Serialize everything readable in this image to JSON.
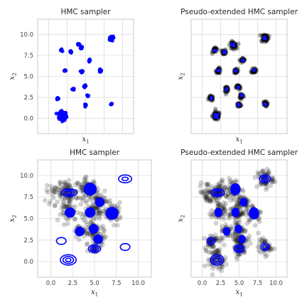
{
  "chart_data": [
    {
      "type": "scatter",
      "title": "HMC sampler",
      "xlabel": "x",
      "xlabel_sub": "1",
      "ylabel": "x",
      "ylabel_sub": "2",
      "xlim": [
        -1.5,
        11.5
      ],
      "ylim": [
        -1.8,
        11.8
      ],
      "yticks": [
        "0.0",
        "2.5",
        "5.0",
        "7.5",
        "10.0"
      ],
      "xticks": [],
      "grid": true,
      "samples_color": "#0000ff",
      "clusters": [
        {
          "x": 1.9,
          "y": 0.3,
          "n": 180,
          "sd": 0.25
        },
        {
          "x": 1.2,
          "y": 2.4,
          "n": 10,
          "sd": 0.06
        },
        {
          "x": 1.7,
          "y": 8.1,
          "n": 8,
          "sd": 0.06
        },
        {
          "x": 3.0,
          "y": 7.9,
          "n": 8,
          "sd": 0.06
        },
        {
          "x": 2.2,
          "y": 5.7,
          "n": 8,
          "sd": 0.06
        },
        {
          "x": 3.3,
          "y": 3.5,
          "n": 8,
          "sd": 0.06
        },
        {
          "x": 4.0,
          "y": 8.8,
          "n": 10,
          "sd": 0.07
        },
        {
          "x": 4.4,
          "y": 8.4,
          "n": 10,
          "sd": 0.07
        },
        {
          "x": 4.5,
          "y": 5.6,
          "n": 10,
          "sd": 0.07
        },
        {
          "x": 4.9,
          "y": 3.8,
          "n": 10,
          "sd": 0.07
        },
        {
          "x": 5.0,
          "y": 1.6,
          "n": 10,
          "sd": 0.06
        },
        {
          "x": 5.3,
          "y": 2.7,
          "n": 8,
          "sd": 0.06
        },
        {
          "x": 5.5,
          "y": 6.9,
          "n": 8,
          "sd": 0.06
        },
        {
          "x": 7.0,
          "y": 5.7,
          "n": 14,
          "sd": 0.08
        },
        {
          "x": 8.4,
          "y": 9.5,
          "n": 18,
          "sd": 0.1
        },
        {
          "x": 8.7,
          "y": 9.6,
          "n": 14,
          "sd": 0.08
        },
        {
          "x": 8.5,
          "y": 1.7,
          "n": 8,
          "sd": 0.06
        }
      ]
    },
    {
      "type": "scatter",
      "title": "Pseudo-extended HMC sampler",
      "xlabel": "x",
      "xlabel_sub": "1",
      "ylabel": "x",
      "ylabel_sub": "2",
      "xlim": [
        -1.5,
        11.5
      ],
      "ylim": [
        -1.8,
        11.8
      ],
      "yticks": [],
      "xticks": [],
      "grid": true,
      "samples_color": "#000000",
      "clusters": [
        {
          "x": 1.9,
          "y": 0.3,
          "n": 60,
          "sd": 0.25
        },
        {
          "x": 1.2,
          "y": 2.4,
          "n": 25,
          "sd": 0.15
        },
        {
          "x": 1.7,
          "y": 8.1,
          "n": 25,
          "sd": 0.15
        },
        {
          "x": 3.0,
          "y": 7.9,
          "n": 25,
          "sd": 0.15
        },
        {
          "x": 2.2,
          "y": 5.7,
          "n": 25,
          "sd": 0.15
        },
        {
          "x": 3.3,
          "y": 3.5,
          "n": 25,
          "sd": 0.15
        },
        {
          "x": 4.2,
          "y": 8.7,
          "n": 35,
          "sd": 0.22
        },
        {
          "x": 4.5,
          "y": 5.6,
          "n": 25,
          "sd": 0.15
        },
        {
          "x": 4.9,
          "y": 3.7,
          "n": 25,
          "sd": 0.15
        },
        {
          "x": 5.0,
          "y": 1.6,
          "n": 25,
          "sd": 0.15
        },
        {
          "x": 5.3,
          "y": 2.7,
          "n": 25,
          "sd": 0.15
        },
        {
          "x": 5.5,
          "y": 6.9,
          "n": 25,
          "sd": 0.15
        },
        {
          "x": 7.0,
          "y": 5.7,
          "n": 25,
          "sd": 0.15
        },
        {
          "x": 8.5,
          "y": 9.6,
          "n": 40,
          "sd": 0.25
        },
        {
          "x": 8.5,
          "y": 1.7,
          "n": 25,
          "sd": 0.15
        }
      ]
    },
    {
      "type": "scatter",
      "title": "HMC sampler",
      "xlabel": "x",
      "xlabel_sub": "1",
      "ylabel": "x",
      "ylabel_sub": "2",
      "xlim": [
        -1.5,
        11.5
      ],
      "ylim": [
        -1.8,
        11.8
      ],
      "yticks": [
        "0.0",
        "2.5",
        "5.0",
        "7.5",
        "10.0"
      ],
      "xticks": [
        "0.0",
        "2.5",
        "5.0",
        "7.5",
        "10.0"
      ],
      "grid": true,
      "samples_color": "#000000",
      "ellipse_color": "#0000ff",
      "clusters": [
        {
          "x": 0.9,
          "y": 8.0,
          "n": 45,
          "sd": 0.7
        },
        {
          "x": 2.0,
          "y": 8.0,
          "n": 60,
          "sd": 0.55
        },
        {
          "x": 2.2,
          "y": 5.7,
          "n": 50,
          "sd": 0.5
        },
        {
          "x": 4.2,
          "y": 8.4,
          "n": 70,
          "sd": 0.6
        },
        {
          "x": 4.6,
          "y": 5.7,
          "n": 55,
          "sd": 0.5
        },
        {
          "x": 5.6,
          "y": 6.9,
          "n": 40,
          "sd": 0.5
        },
        {
          "x": 7.0,
          "y": 5.6,
          "n": 55,
          "sd": 0.55
        },
        {
          "x": 3.4,
          "y": 3.5,
          "n": 35,
          "sd": 0.45
        },
        {
          "x": 5.0,
          "y": 3.7,
          "n": 40,
          "sd": 0.5
        },
        {
          "x": 5.3,
          "y": 2.5,
          "n": 35,
          "sd": 0.45
        },
        {
          "x": 5.0,
          "y": 1.6,
          "n": 20,
          "sd": 0.3
        }
      ],
      "blobs": [
        {
          "x": 2.2,
          "y": 5.7,
          "r": 0.6
        },
        {
          "x": 4.5,
          "y": 8.4,
          "r": 0.75
        },
        {
          "x": 4.5,
          "y": 5.7,
          "r": 0.6
        },
        {
          "x": 5.6,
          "y": 6.9,
          "r": 0.55
        },
        {
          "x": 7.0,
          "y": 5.6,
          "r": 0.75
        },
        {
          "x": 3.3,
          "y": 3.5,
          "r": 0.55
        },
        {
          "x": 4.9,
          "y": 3.8,
          "r": 0.55
        },
        {
          "x": 5.4,
          "y": 2.6,
          "r": 0.55
        }
      ],
      "ellipses": [
        {
          "x": 2.1,
          "y": 8.0,
          "rx": [
            0.9,
            0.6,
            0.3
          ],
          "ry": [
            0.45,
            0.3,
            0.15
          ]
        },
        {
          "x": 1.2,
          "y": 2.4,
          "rx": [
            0.55
          ],
          "ry": [
            0.4
          ]
        },
        {
          "x": 2.0,
          "y": 0.2,
          "rx": [
            0.9,
            0.6,
            0.3
          ],
          "ry": [
            0.6,
            0.4,
            0.2
          ]
        },
        {
          "x": 5.0,
          "y": 1.5,
          "rx": [
            0.7,
            0.45,
            0.2
          ],
          "ry": [
            0.45,
            0.3,
            0.13
          ]
        },
        {
          "x": 8.5,
          "y": 9.6,
          "rx": [
            0.75,
            0.35
          ],
          "ry": [
            0.45,
            0.2
          ]
        },
        {
          "x": 8.5,
          "y": 1.7,
          "rx": [
            0.55
          ],
          "ry": [
            0.4
          ]
        }
      ]
    },
    {
      "type": "scatter",
      "title": "Pseudo-extended HMC sampler",
      "xlabel": "x",
      "xlabel_sub": "1",
      "ylabel": "x",
      "ylabel_sub": "2",
      "xlim": [
        -1.5,
        11.5
      ],
      "ylim": [
        -1.8,
        11.8
      ],
      "yticks": [],
      "xticks": [
        "0.0",
        "2.5",
        "5.0",
        "7.5",
        "10.0"
      ],
      "grid": true,
      "samples_color": "#000000",
      "ellipse_color": "#0000ff",
      "clusters": [
        {
          "x": 0.9,
          "y": 8.0,
          "n": 45,
          "sd": 0.65
        },
        {
          "x": 2.0,
          "y": 8.0,
          "n": 60,
          "sd": 0.55
        },
        {
          "x": 2.2,
          "y": 5.7,
          "n": 45,
          "sd": 0.5
        },
        {
          "x": 4.2,
          "y": 8.4,
          "n": 60,
          "sd": 0.6
        },
        {
          "x": 4.6,
          "y": 5.7,
          "n": 50,
          "sd": 0.5
        },
        {
          "x": 5.6,
          "y": 6.9,
          "n": 40,
          "sd": 0.5
        },
        {
          "x": 7.0,
          "y": 5.6,
          "n": 50,
          "sd": 0.55
        },
        {
          "x": 3.4,
          "y": 3.5,
          "n": 35,
          "sd": 0.45
        },
        {
          "x": 5.0,
          "y": 3.7,
          "n": 40,
          "sd": 0.5
        },
        {
          "x": 5.3,
          "y": 2.5,
          "n": 35,
          "sd": 0.45
        },
        {
          "x": 5.0,
          "y": 1.5,
          "n": 45,
          "sd": 0.45
        },
        {
          "x": 1.2,
          "y": 2.4,
          "n": 45,
          "sd": 0.45
        },
        {
          "x": 2.0,
          "y": 0.3,
          "n": 70,
          "sd": 0.6
        },
        {
          "x": 8.5,
          "y": 9.6,
          "n": 60,
          "sd": 0.55
        },
        {
          "x": 8.5,
          "y": 1.7,
          "n": 45,
          "sd": 0.45
        }
      ],
      "blobs": [
        {
          "x": 2.2,
          "y": 5.7,
          "r": 0.55
        },
        {
          "x": 4.5,
          "y": 8.4,
          "r": 0.7
        },
        {
          "x": 4.5,
          "y": 5.7,
          "r": 0.55
        },
        {
          "x": 5.6,
          "y": 6.9,
          "r": 0.5
        },
        {
          "x": 7.0,
          "y": 5.6,
          "r": 0.7
        },
        {
          "x": 3.3,
          "y": 3.5,
          "r": 0.5
        },
        {
          "x": 4.9,
          "y": 3.8,
          "r": 0.5
        },
        {
          "x": 5.4,
          "y": 2.6,
          "r": 0.5
        }
      ],
      "ellipses": [
        {
          "x": 2.1,
          "y": 8.0,
          "rx": [
            0.9,
            0.6,
            0.3
          ],
          "ry": [
            0.45,
            0.3,
            0.15
          ]
        },
        {
          "x": 1.2,
          "y": 2.4,
          "rx": [
            0.55,
            0.3
          ],
          "ry": [
            0.4,
            0.2
          ]
        },
        {
          "x": 2.0,
          "y": 0.2,
          "rx": [
            0.9,
            0.6,
            0.3
          ],
          "ry": [
            0.6,
            0.4,
            0.2
          ]
        },
        {
          "x": 5.0,
          "y": 1.5,
          "rx": [
            0.7,
            0.45,
            0.2
          ],
          "ry": [
            0.45,
            0.3,
            0.13
          ]
        },
        {
          "x": 8.5,
          "y": 9.6,
          "rx": [
            0.75,
            0.45,
            0.2
          ],
          "ry": [
            0.45,
            0.28,
            0.12
          ]
        },
        {
          "x": 8.5,
          "y": 1.7,
          "rx": [
            0.55,
            0.3
          ],
          "ry": [
            0.4,
            0.2
          ]
        }
      ]
    }
  ]
}
